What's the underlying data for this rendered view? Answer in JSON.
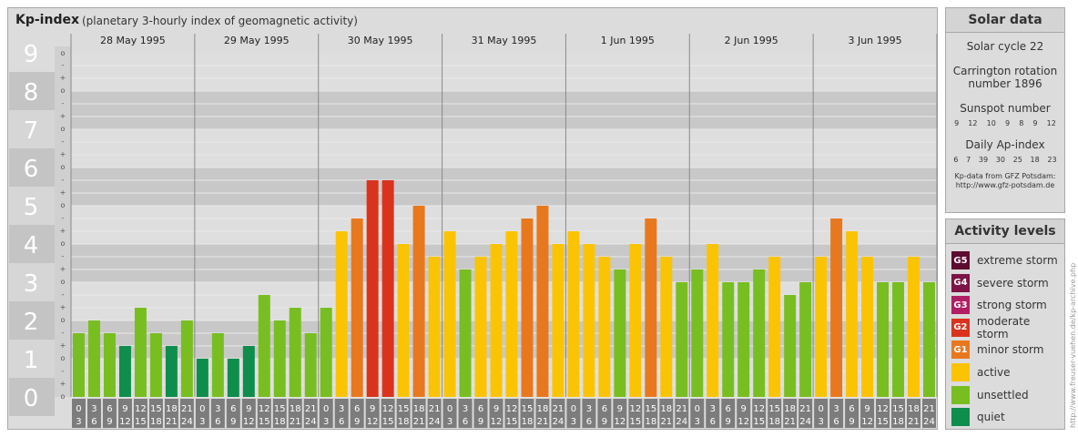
{
  "header": {
    "title": "Kp-index",
    "subtitle": "(planetary 3-hourly index of geomagnetic activity)"
  },
  "chart_data": {
    "type": "bar",
    "title": "Kp-index",
    "subtitle": "(planetary 3-hourly index of geomagnetic activity)",
    "ylim": [
      0,
      9
    ],
    "y_ticks": [
      "0",
      "1",
      "2",
      "3",
      "4",
      "5",
      "6",
      "7",
      "8",
      "9"
    ],
    "sub_ticks": [
      "+",
      "o",
      "-"
    ],
    "days": [
      "28 May 1995",
      "29 May 1995",
      "30 May 1995",
      "31 May 1995",
      "1 Jun 1995",
      "2 Jun 1995",
      "3 Jun 1995"
    ],
    "interval_labels": [
      [
        "0",
        "3"
      ],
      [
        "3",
        "6"
      ],
      [
        "6",
        "9"
      ],
      [
        "9",
        "12"
      ],
      [
        "12",
        "15"
      ],
      [
        "15",
        "18"
      ],
      [
        "18",
        "21"
      ],
      [
        "21",
        "24"
      ]
    ],
    "values": [
      [
        1.667,
        2.0,
        1.667,
        1.333,
        2.333,
        1.667,
        1.333,
        2.0
      ],
      [
        1.0,
        1.667,
        1.0,
        1.333,
        2.667,
        2.0,
        2.333,
        1.667
      ],
      [
        2.333,
        4.333,
        4.667,
        5.667,
        5.667,
        4.0,
        5.0,
        3.667
      ],
      [
        4.333,
        3.333,
        3.667,
        4.0,
        4.333,
        4.667,
        5.0,
        4.0
      ],
      [
        4.333,
        4.0,
        3.667,
        3.333,
        4.0,
        4.667,
        3.667,
        3.0
      ],
      [
        3.333,
        4.0,
        3.0,
        3.0,
        3.333,
        3.667,
        2.667,
        3.0
      ],
      [
        3.667,
        4.667,
        4.333,
        3.667,
        3.0,
        3.0,
        3.667,
        3.0
      ]
    ],
    "levels": [
      {
        "name": "quiet",
        "min": 0,
        "max": 1.5,
        "color": "#0f8d4c"
      },
      {
        "name": "unsettled",
        "min": 1.5,
        "max": 3.5,
        "color": "#78be21"
      },
      {
        "name": "active",
        "min": 3.5,
        "max": 4.5,
        "color": "#fbc403"
      },
      {
        "name": "minor storm",
        "min": 4.5,
        "max": 5.5,
        "color": "#e8781e"
      },
      {
        "name": "moderate storm",
        "min": 5.5,
        "max": 6.5,
        "color": "#d9331e"
      }
    ]
  },
  "solar": {
    "heading": "Solar data",
    "cycle": "Solar cycle 22",
    "carrington_line1": "Carrington rotation",
    "carrington_line2": "number 1896",
    "sunspot_heading": "Sunspot number",
    "sunspot_values": [
      "9",
      "12",
      "10",
      "9",
      "8",
      "9",
      "12"
    ],
    "ap_heading": "Daily Ap-index",
    "ap_values": [
      "6",
      "7",
      "39",
      "30",
      "25",
      "18",
      "23"
    ],
    "credit_line1": "Kp-data from GFZ Potsdam:",
    "credit_line2": "http://www.gfz-potsdam.de"
  },
  "activity": {
    "heading": "Activity levels",
    "items": [
      {
        "code": "G5",
        "label": "extreme storm",
        "color": "#5e0b32"
      },
      {
        "code": "G4",
        "label": "severe storm",
        "color": "#7d1346"
      },
      {
        "code": "G3",
        "label": "strong storm",
        "color": "#b01e63"
      },
      {
        "code": "G2",
        "label": "moderate storm",
        "color": "#d9331e"
      },
      {
        "code": "G1",
        "label": "minor storm",
        "color": "#e8781e"
      },
      {
        "code": "",
        "label": "active",
        "color": "#fbc403"
      },
      {
        "code": "",
        "label": "unsettled",
        "color": "#78be21"
      },
      {
        "code": "",
        "label": "quiet",
        "color": "#0f8d4c"
      }
    ]
  },
  "watermark": "http://www.freuser-vuehen.de/kp-archive.php"
}
